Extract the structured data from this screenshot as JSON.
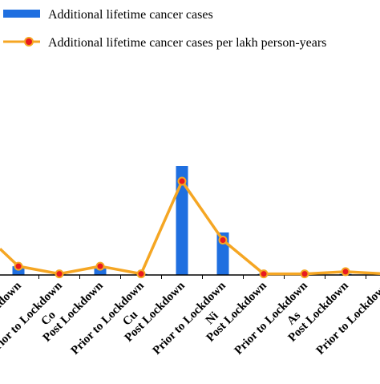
{
  "chart_data": {
    "type": "bar",
    "categories": [
      "Post Lockdown",
      "Prior to Lockdown",
      "Post Lockdown",
      "Prior to Lockdown",
      "Post Lockdown",
      "Prior to Lockdown",
      "Post Lockdown",
      "Prior to Lockdown",
      "Post Lockdown",
      "Prior to Lockdown"
    ],
    "groups": [
      {
        "label": "Co",
        "categories": [
          1,
          2
        ]
      },
      {
        "label": "Cu",
        "categories": [
          3,
          4
        ]
      },
      {
        "label": "Ni",
        "categories": [
          5,
          6
        ]
      },
      {
        "label": "As",
        "categories": [
          7,
          8
        ]
      }
    ],
    "series": [
      {
        "name": "Additional lifetime cancer cases",
        "type": "bar",
        "color": "#1f6fe0",
        "values": [
          8,
          1,
          6,
          1,
          100,
          39,
          1,
          1,
          1,
          1
        ]
      },
      {
        "name": "Additional lifetime cancer cases per lakh person-years",
        "type": "line",
        "color": "#f5a623",
        "marker_color": "#e8191f",
        "values": [
          8,
          1,
          8,
          1,
          86,
          32,
          1,
          1,
          3,
          1
        ]
      }
    ],
    "line_left_edge_value": 24,
    "ylim": [
      0,
      100
    ],
    "legend_position": "top",
    "grid": false
  }
}
